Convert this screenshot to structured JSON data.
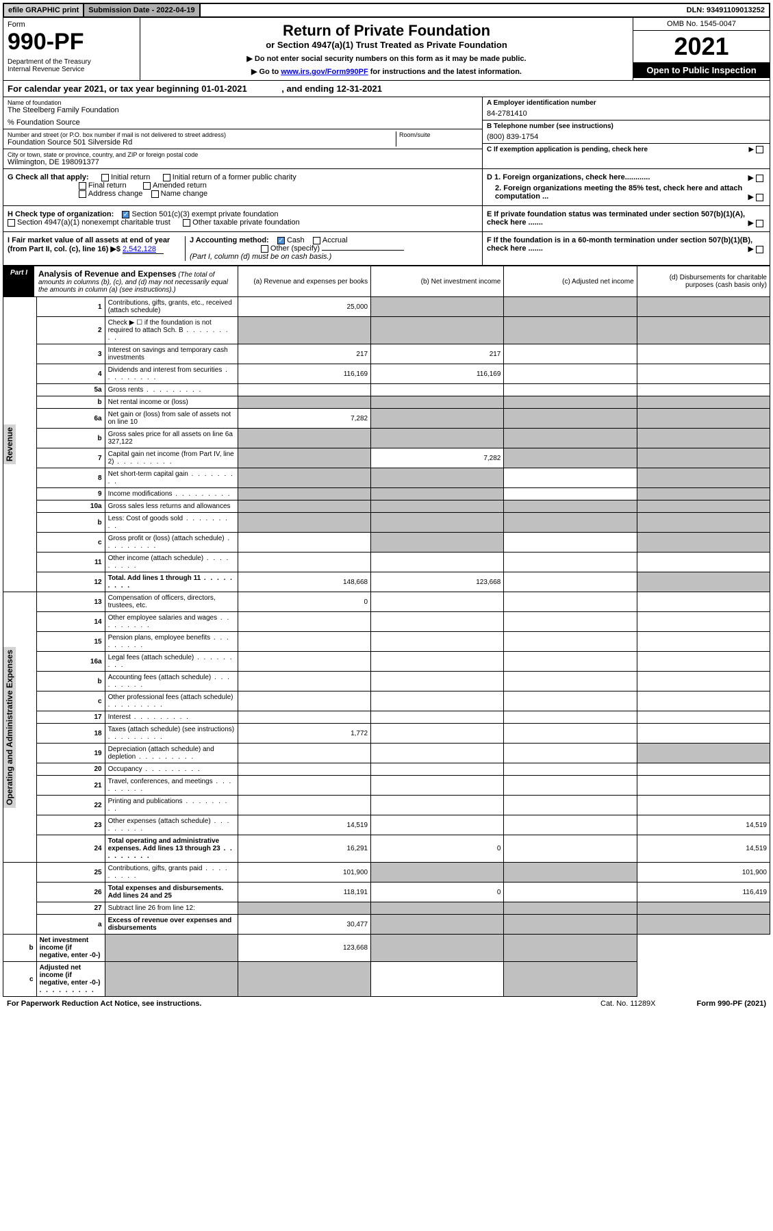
{
  "top": {
    "efile": "efile GRAPHIC print",
    "sub_label": "Submission Date - 2022-04-19",
    "dln": "DLN: 93491109013252"
  },
  "header": {
    "form_word": "Form",
    "form_no": "990-PF",
    "dept": "Department of the Treasury\nInternal Revenue Service",
    "title": "Return of Private Foundation",
    "subtitle": "or Section 4947(a)(1) Trust Treated as Private Foundation",
    "note1": "▶ Do not enter social security numbers on this form as it may be made public.",
    "note2_pre": "▶ Go to ",
    "note2_link": "www.irs.gov/Form990PF",
    "note2_post": " for instructions and the latest information.",
    "omb": "OMB No. 1545-0047",
    "year": "2021",
    "open": "Open to Public Inspection"
  },
  "cal": "For calendar year 2021, or tax year beginning 01-01-2021              , and ending 12-31-2021",
  "info": {
    "name_label": "Name of foundation",
    "name": "The Steelberg Family Foundation",
    "care": "% Foundation Source",
    "addr_label": "Number and street (or P.O. box number if mail is not delivered to street address)",
    "addr": "Foundation Source 501 Silverside Rd",
    "room_label": "Room/suite",
    "city_label": "City or town, state or province, country, and ZIP or foreign postal code",
    "city": "Wilmington, DE  198091377",
    "a_label": "A Employer identification number",
    "a_val": "84-2781410",
    "b_label": "B Telephone number (see instructions)",
    "b_val": "(800) 839-1754",
    "c_label": "C If exemption application is pending, check here"
  },
  "g": {
    "label": "G Check all that apply:",
    "opts": [
      "Initial return",
      "Initial return of a former public charity",
      "Final return",
      "Amended return",
      "Address change",
      "Name change"
    ]
  },
  "h": {
    "label": "H Check type of organization:",
    "opt1": "Section 501(c)(3) exempt private foundation",
    "opt2": "Section 4947(a)(1) nonexempt charitable trust",
    "opt3": "Other taxable private foundation"
  },
  "i": {
    "label": "I Fair market value of all assets at end of year (from Part II, col. (c), line 16) ▶$ ",
    "val": "2,542,128"
  },
  "j": {
    "label": "J Accounting method:",
    "cash": "Cash",
    "accrual": "Accrual",
    "other": "Other (specify)",
    "note": "(Part I, column (d) must be on cash basis.)"
  },
  "d": {
    "d1": "D 1. Foreign organizations, check here............",
    "d2": "2. Foreign organizations meeting the 85% test, check here and attach computation ...",
    "e": "E  If private foundation status was terminated under section 507(b)(1)(A), check here .......",
    "f": "F  If the foundation is in a 60-month termination under section 507(b)(1)(B), check here ......."
  },
  "part1": {
    "label": "Part I",
    "title": "Analysis of Revenue and Expenses",
    "note": "(The total of amounts in columns (b), (c), and (d) may not necessarily equal the amounts in column (a) (see instructions).)",
    "cols": {
      "a": "(a) Revenue and expenses per books",
      "b": "(b) Net investment income",
      "c": "(c) Adjusted net income",
      "d": "(d) Disbursements for charitable purposes (cash basis only)"
    }
  },
  "vlabels": {
    "rev": "Revenue",
    "exp": "Operating and Administrative Expenses"
  },
  "rows": [
    {
      "n": "1",
      "d": "Contributions, gifts, grants, etc., received (attach schedule)",
      "a": "25,000",
      "grey": [
        "b",
        "c",
        "d"
      ]
    },
    {
      "n": "2",
      "d": "Check ▶ ☐ if the foundation is not required to attach Sch. B",
      "grey": [
        "a",
        "b",
        "c",
        "d"
      ],
      "dots": true
    },
    {
      "n": "3",
      "d": "Interest on savings and temporary cash investments",
      "a": "217",
      "b": "217"
    },
    {
      "n": "4",
      "d": "Dividends and interest from securities",
      "a": "116,169",
      "b": "116,169",
      "dots": true
    },
    {
      "n": "5a",
      "d": "Gross rents",
      "dots": true
    },
    {
      "n": "b",
      "d": "Net rental income or (loss)",
      "grey": [
        "a",
        "b",
        "c",
        "d"
      ]
    },
    {
      "n": "6a",
      "d": "Net gain or (loss) from sale of assets not on line 10",
      "a": "7,282",
      "grey": [
        "b",
        "c",
        "d"
      ]
    },
    {
      "n": "b",
      "d": "Gross sales price for all assets on line 6a                327,122",
      "grey": [
        "a",
        "b",
        "c",
        "d"
      ]
    },
    {
      "n": "7",
      "d": "Capital gain net income (from Part IV, line 2)",
      "b": "7,282",
      "grey": [
        "a",
        "c",
        "d"
      ],
      "dots": true
    },
    {
      "n": "8",
      "d": "Net short-term capital gain",
      "grey": [
        "a",
        "b",
        "d"
      ],
      "dots": true
    },
    {
      "n": "9",
      "d": "Income modifications",
      "grey": [
        "a",
        "b",
        "d"
      ],
      "dots": true
    },
    {
      "n": "10a",
      "d": "Gross sales less returns and allowances",
      "grey": [
        "a",
        "b",
        "c",
        "d"
      ]
    },
    {
      "n": "b",
      "d": "Less: Cost of goods sold",
      "grey": [
        "a",
        "b",
        "c",
        "d"
      ],
      "dots": true
    },
    {
      "n": "c",
      "d": "Gross profit or (loss) (attach schedule)",
      "grey": [
        "b",
        "d"
      ],
      "dots": true
    },
    {
      "n": "11",
      "d": "Other income (attach schedule)",
      "dots": true
    },
    {
      "n": "12",
      "d": "Total. Add lines 1 through 11",
      "a": "148,668",
      "b": "123,668",
      "bold": true,
      "grey": [
        "d"
      ],
      "dots": true
    },
    {
      "n": "13",
      "d": "Compensation of officers, directors, trustees, etc.",
      "a": "0"
    },
    {
      "n": "14",
      "d": "Other employee salaries and wages",
      "dots": true
    },
    {
      "n": "15",
      "d": "Pension plans, employee benefits",
      "dots": true
    },
    {
      "n": "16a",
      "d": "Legal fees (attach schedule)",
      "dots": true
    },
    {
      "n": "b",
      "d": "Accounting fees (attach schedule)",
      "dots": true
    },
    {
      "n": "c",
      "d": "Other professional fees (attach schedule)",
      "dots": true
    },
    {
      "n": "17",
      "d": "Interest",
      "dots": true
    },
    {
      "n": "18",
      "d": "Taxes (attach schedule) (see instructions)",
      "a": "1,772",
      "dots": true
    },
    {
      "n": "19",
      "d": "Depreciation (attach schedule) and depletion",
      "grey": [
        "d"
      ],
      "dots": true
    },
    {
      "n": "20",
      "d": "Occupancy",
      "dots": true
    },
    {
      "n": "21",
      "d": "Travel, conferences, and meetings",
      "dots": true
    },
    {
      "n": "22",
      "d": "Printing and publications",
      "dots": true
    },
    {
      "n": "23",
      "d": "Other expenses (attach schedule)",
      "a": "14,519",
      "dd": "14,519",
      "dots": true
    },
    {
      "n": "24",
      "d": "Total operating and administrative expenses. Add lines 13 through 23",
      "a": "16,291",
      "b": "0",
      "dd": "14,519",
      "bold": true,
      "dots": true
    },
    {
      "n": "25",
      "d": "Contributions, gifts, grants paid",
      "a": "101,900",
      "dd": "101,900",
      "grey": [
        "b",
        "c"
      ],
      "dots": true
    },
    {
      "n": "26",
      "d": "Total expenses and disbursements. Add lines 24 and 25",
      "a": "118,191",
      "b": "0",
      "dd": "116,419",
      "bold": true
    },
    {
      "n": "27",
      "d": "Subtract line 26 from line 12:",
      "grey": [
        "a",
        "b",
        "c",
        "d"
      ]
    },
    {
      "n": "a",
      "d": "Excess of revenue over expenses and disbursements",
      "a": "30,477",
      "bold": true,
      "grey": [
        "b",
        "c",
        "d"
      ]
    },
    {
      "n": "b",
      "d": "Net investment income (if negative, enter -0-)",
      "b": "123,668",
      "bold": true,
      "grey": [
        "a",
        "c",
        "d"
      ]
    },
    {
      "n": "c",
      "d": "Adjusted net income (if negative, enter -0-)",
      "bold": true,
      "grey": [
        "a",
        "b",
        "d"
      ],
      "dots": true
    }
  ],
  "footer": {
    "pra": "For Paperwork Reduction Act Notice, see instructions.",
    "cat": "Cat. No. 11289X",
    "form": "Form 990-PF (2021)"
  }
}
